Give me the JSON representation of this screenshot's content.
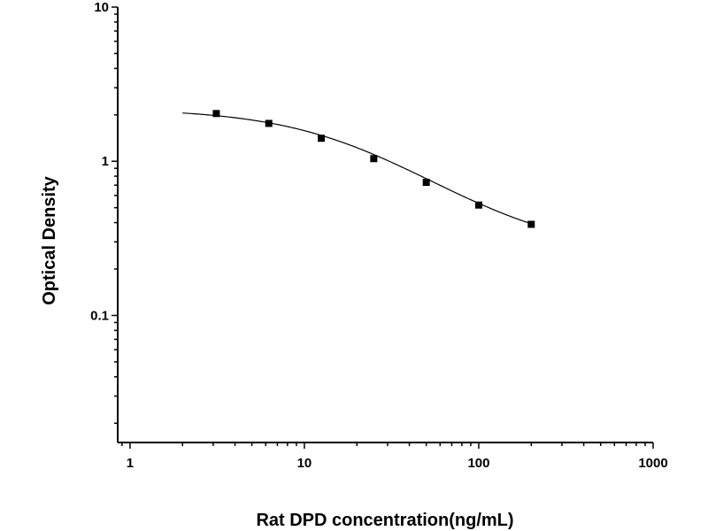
{
  "chart_data": {
    "type": "scatter",
    "title": "",
    "xlabel": "Rat DPD concentration(ng/mL)",
    "ylabel": "Optical Density",
    "x_scale": "log",
    "y_scale": "log",
    "xlim": [
      0.85,
      1000
    ],
    "ylim": [
      0.015,
      10
    ],
    "x_ticks": [
      "1",
      "10",
      "100",
      "1000"
    ],
    "y_ticks": [
      "0.1",
      "1",
      "10"
    ],
    "grid": false,
    "legend": "none",
    "series": [
      {
        "x": [
          3.125,
          6.25,
          12.5,
          25,
          50,
          100,
          200
        ],
        "y": [
          2.04,
          1.76,
          1.41,
          1.04,
          0.73,
          0.52,
          0.39
        ],
        "marker": "square",
        "color": "#000000",
        "fit_curve": true
      }
    ]
  }
}
